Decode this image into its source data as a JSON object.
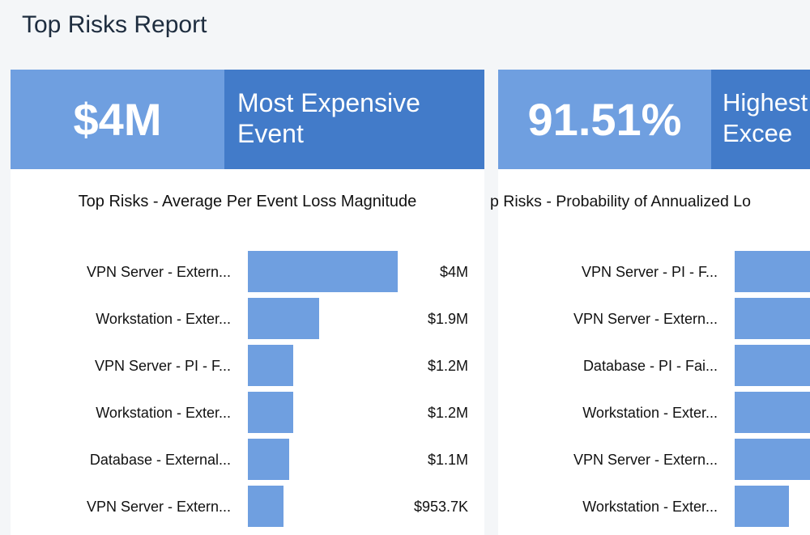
{
  "page": {
    "title": "Top Risks Report"
  },
  "colors": {
    "kpi_light": "#6f9fe0",
    "kpi_dark": "#427bc9",
    "bar": "#6f9fe0"
  },
  "cards": [
    {
      "kpi_value": "$4M",
      "kpi_label_line1": "Most Expensive",
      "kpi_label_line2": "Event"
    },
    {
      "kpi_value": "91.51%",
      "kpi_label_line1": "Highest",
      "kpi_label_line2": "Excee"
    }
  ],
  "chart_data": [
    {
      "type": "bar",
      "orientation": "horizontal",
      "title": "Top Risks - Average Per Event Loss Magnitude",
      "categories": [
        "VPN Server - Extern...",
        "Workstation - Exter...",
        "VPN Server - PI - F...",
        "Workstation - Exter...",
        "Database - External...",
        "VPN Server - Extern..."
      ],
      "values": [
        4000000,
        1900000,
        1200000,
        1200000,
        1100000,
        953700
      ],
      "value_labels": [
        "$4M",
        "$1.9M",
        "$1.2M",
        "$1.2M",
        "$1.1M",
        "$953.7K"
      ],
      "xlim": [
        0,
        4000000
      ]
    },
    {
      "type": "bar",
      "orientation": "horizontal",
      "title": "p Risks - Probability of Annualized Lo",
      "categories": [
        "VPN Server - PI - F...",
        "VPN Server - Extern...",
        "Database - PI - Fai...",
        "Workstation - Exter...",
        "VPN Server - Extern...",
        "Workstation - Exter..."
      ],
      "values": [
        91.51,
        85,
        80,
        75,
        70,
        33
      ],
      "unit": "%",
      "xlim": [
        0,
        91.51
      ]
    }
  ]
}
